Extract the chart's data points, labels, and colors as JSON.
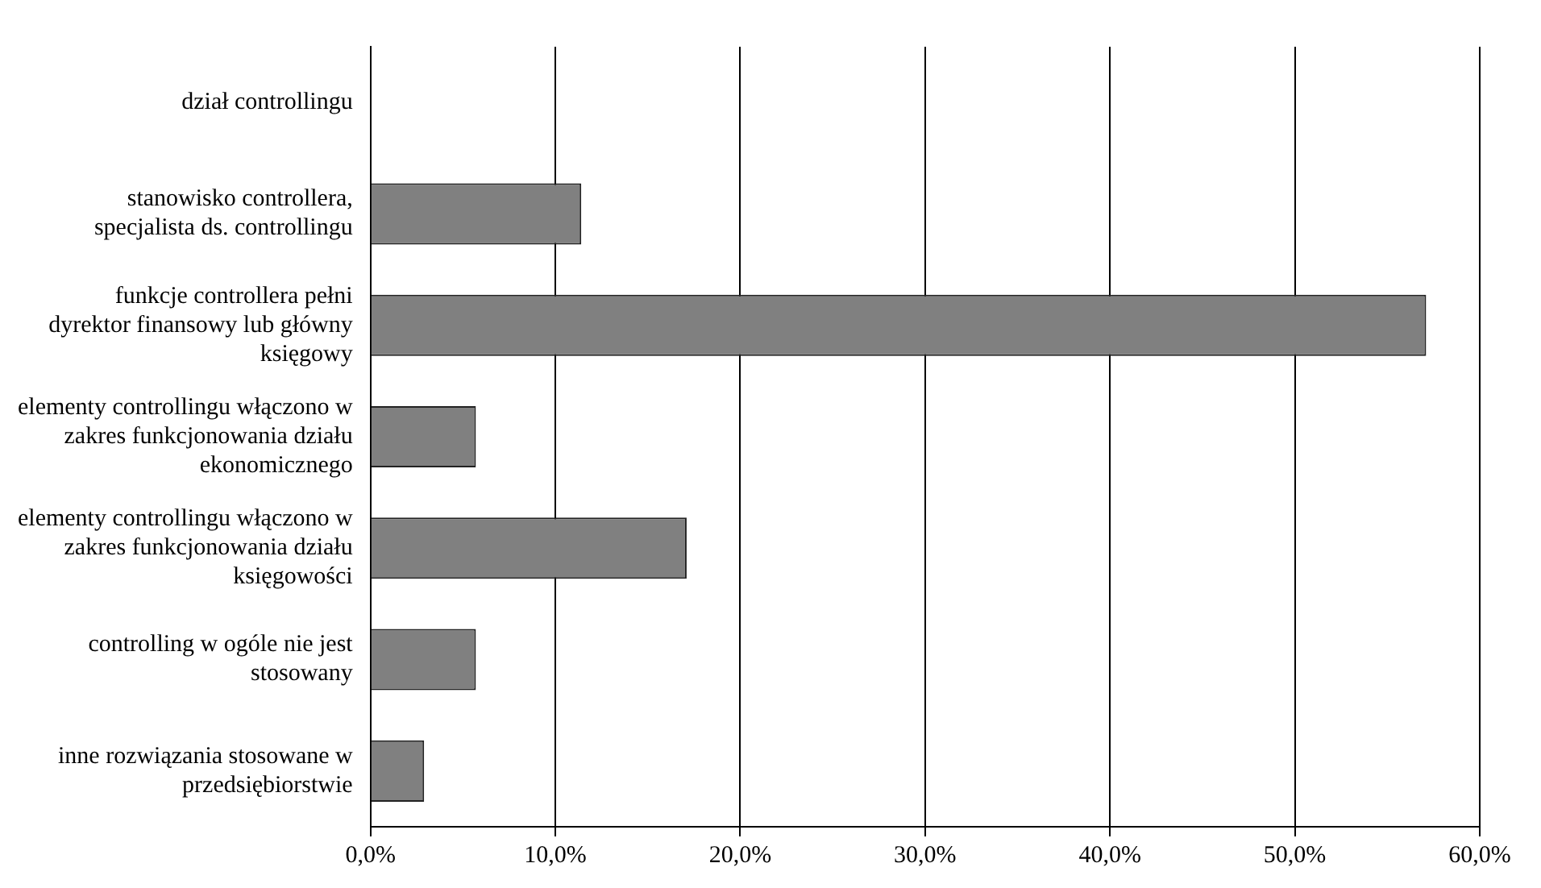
{
  "chart_data": {
    "type": "bar",
    "orientation": "horizontal",
    "categories": [
      "dział controllingu",
      "stanowisko controllera, specjalista ds. controllingu",
      "funkcje controllera pełni dyrektor finansowy lub główny księgowy",
      "elementy controllingu włączono w zakres funkcjonowania działu ekonomicznego",
      "elementy controllingu włączono w zakres funkcjonowania działu księgowości",
      "controlling w ogóle nie jest stosowany",
      "inne rozwiązania stosowane w przedsiębiorstwie"
    ],
    "values": [
      0,
      11.4,
      57.1,
      5.7,
      17.1,
      5.7,
      2.9
    ],
    "color": "#808080",
    "xlim": [
      0,
      60
    ],
    "xticks": [
      {
        "value": 0,
        "label": "0,0%"
      },
      {
        "value": 10,
        "label": "10,0%"
      },
      {
        "value": 20,
        "label": "20,0%"
      },
      {
        "value": 30,
        "label": "30,0%"
      },
      {
        "value": 40,
        "label": "40,0%"
      },
      {
        "value": 50,
        "label": "50,0%"
      },
      {
        "value": 60,
        "label": "60,0%"
      }
    ],
    "grid": "x",
    "legend": false
  }
}
